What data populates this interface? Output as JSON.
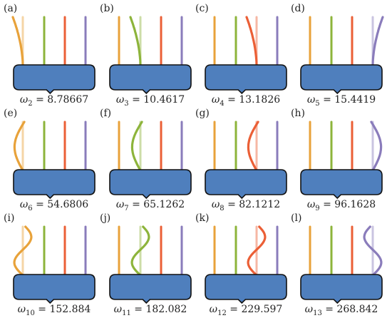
{
  "figure": {
    "colors": {
      "base_fill": "#4f7fbd",
      "base_stroke": "#111111",
      "strand_orange": "#e8a23a",
      "strand_green": "#8db43b",
      "strand_red": "#eb5f36",
      "strand_purple": "#8a7cbb"
    },
    "panels": [
      {
        "letter": "(a)",
        "omega_index": "2",
        "omega_value": "8.78667",
        "moving_strand": 0,
        "mode": 1,
        "amplitude": 0.5
      },
      {
        "letter": "(b)",
        "omega_index": "3",
        "omega_value": "10.4617",
        "moving_strand": 1,
        "mode": 1,
        "amplitude": 0.5
      },
      {
        "letter": "(c)",
        "omega_index": "4",
        "omega_value": "13.1826",
        "moving_strand": 2,
        "mode": 1,
        "amplitude": 0.5
      },
      {
        "letter": "(d)",
        "omega_index": "5",
        "omega_value": "15.4419",
        "moving_strand": 3,
        "mode": 1,
        "amplitude": -0.5
      },
      {
        "letter": "(e)",
        "omega_index": "6",
        "omega_value": "54.6806",
        "moving_strand": 0,
        "mode": 2,
        "amplitude": 0.5
      },
      {
        "letter": "(f)",
        "omega_index": "7",
        "omega_value": "65.1262",
        "moving_strand": 1,
        "mode": 2,
        "amplitude": 0.5
      },
      {
        "letter": "(g)",
        "omega_index": "8",
        "omega_value": "82.1212",
        "moving_strand": 2,
        "mode": 2,
        "amplitude": 0.5
      },
      {
        "letter": "(h)",
        "omega_index": "9",
        "omega_value": "96.1628",
        "moving_strand": 3,
        "mode": 2,
        "amplitude": -0.5
      },
      {
        "letter": "(i)",
        "omega_index": "10",
        "omega_value": "152.884",
        "moving_strand": 0,
        "mode": 3,
        "amplitude": 0.5
      },
      {
        "letter": "(j)",
        "omega_index": "11",
        "omega_value": "182.082",
        "moving_strand": 1,
        "mode": 3,
        "amplitude": 0.5
      },
      {
        "letter": "(k)",
        "omega_index": "12",
        "omega_value": "229.597",
        "moving_strand": 2,
        "mode": 3,
        "amplitude": 0.5
      },
      {
        "letter": "(l)",
        "omega_index": "13",
        "omega_value": "268.842",
        "moving_strand": 3,
        "mode": 3,
        "amplitude": -0.5
      }
    ]
  }
}
